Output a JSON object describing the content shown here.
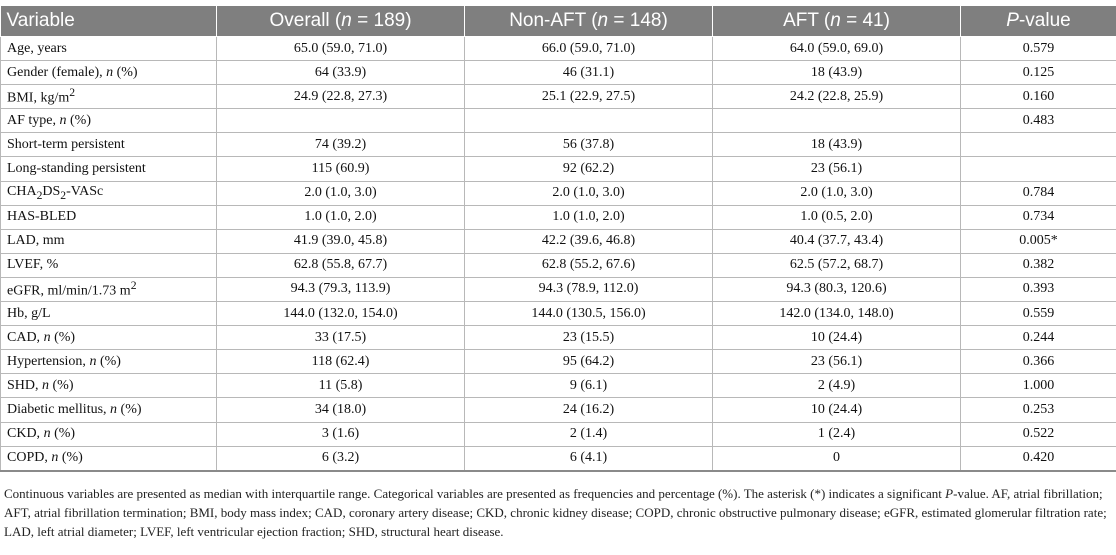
{
  "table": {
    "headers": {
      "variable": "Variable",
      "overall": {
        "pre": "Overall (",
        "n": "n",
        "post": " = 189)"
      },
      "non_aft": {
        "pre": "Non-AFT (",
        "n": "n",
        "post": " = 148)"
      },
      "aft": {
        "pre": "AFT (",
        "n": "n",
        "post": " = 41)"
      },
      "p": {
        "pre": "",
        "n": "P",
        "post": "-value"
      }
    },
    "rows": [
      {
        "label": "Age, years",
        "overall": "65.0 (59.0, 71.0)",
        "non_aft": "66.0 (59.0, 71.0)",
        "aft": "64.0 (59.0, 69.0)",
        "p": "0.579"
      },
      {
        "label": "Gender (female), ",
        "label_it": "n",
        "label_post": " (%)",
        "overall": "64 (33.9)",
        "non_aft": "46 (31.1)",
        "aft": "18 (43.9)",
        "p": "0.125"
      },
      {
        "label": "BMI, kg/m",
        "label_sup": "2",
        "overall": "24.9 (22.8, 27.3)",
        "non_aft": "25.1 (22.9, 27.5)",
        "aft": "24.2 (22.8, 25.9)",
        "p": "0.160"
      },
      {
        "label": "AF type, ",
        "label_it": "n",
        "label_post": " (%)",
        "overall": "",
        "non_aft": "",
        "aft": "",
        "p": "0.483"
      },
      {
        "label": "Short-term persistent",
        "overall": "74 (39.2)",
        "non_aft": "56 (37.8)",
        "aft": "18 (43.9)",
        "p": ""
      },
      {
        "label": "Long-standing persistent",
        "overall": "115 (60.9)",
        "non_aft": "92 (62.2)",
        "aft": "23 (56.1)",
        "p": ""
      },
      {
        "label": "CHA",
        "label_sub1": "2",
        "label_mid": "DS",
        "label_sub2": "2",
        "label_post": "-VASc",
        "overall": "2.0 (1.0, 3.0)",
        "non_aft": "2.0 (1.0, 3.0)",
        "aft": "2.0 (1.0, 3.0)",
        "p": "0.784"
      },
      {
        "label": "HAS-BLED",
        "overall": "1.0 (1.0, 2.0)",
        "non_aft": "1.0 (1.0, 2.0)",
        "aft": "1.0 (0.5, 2.0)",
        "p": "0.734"
      },
      {
        "label": "LAD, mm",
        "overall": "41.9 (39.0, 45.8)",
        "non_aft": "42.2 (39.6, 46.8)",
        "aft": "40.4 (37.7, 43.4)",
        "p": "0.005*"
      },
      {
        "label": "LVEF, %",
        "overall": "62.8 (55.8, 67.7)",
        "non_aft": "62.8 (55.2, 67.6)",
        "aft": "62.5 (57.2, 68.7)",
        "p": "0.382"
      },
      {
        "label": "eGFR, ml/min/1.73 m",
        "label_sup": "2",
        "overall": "94.3 (79.3, 113.9)",
        "non_aft": "94.3 (78.9, 112.0)",
        "aft": "94.3 (80.3, 120.6)",
        "p": "0.393"
      },
      {
        "label": "Hb, g/L",
        "overall": "144.0 (132.0, 154.0)",
        "non_aft": "144.0 (130.5, 156.0)",
        "aft": "142.0 (134.0, 148.0)",
        "p": "0.559"
      },
      {
        "label": "CAD, ",
        "label_it": "n",
        "label_post": " (%)",
        "overall": "33 (17.5)",
        "non_aft": "23 (15.5)",
        "aft": "10 (24.4)",
        "p": "0.244"
      },
      {
        "label": "Hypertension, ",
        "label_it": "n",
        "label_post": " (%)",
        "overall": "118 (62.4)",
        "non_aft": "95 (64.2)",
        "aft": "23 (56.1)",
        "p": "0.366"
      },
      {
        "label": "SHD, ",
        "label_it": "n",
        "label_post": " (%)",
        "overall": "11 (5.8)",
        "non_aft": "9 (6.1)",
        "aft": "2 (4.9)",
        "p": "1.000"
      },
      {
        "label": "Diabetic mellitus, ",
        "label_it": "n",
        "label_post": " (%)",
        "overall": "34 (18.0)",
        "non_aft": "24 (16.2)",
        "aft": "10 (24.4)",
        "p": "0.253"
      },
      {
        "label": "CKD, ",
        "label_it": "n",
        "label_post": " (%)",
        "overall": "3 (1.6)",
        "non_aft": "2 (1.4)",
        "aft": "1 (2.4)",
        "p": "0.522"
      },
      {
        "label": "COPD, ",
        "label_it": "n",
        "label_post": " (%)",
        "overall": "6 (3.2)",
        "non_aft": "6 (4.1)",
        "aft": "0",
        "p": "0.420"
      }
    ]
  },
  "footnote": {
    "part1": "Continuous variables are presented as median with interquartile range. Categorical variables are presented as frequencies and percentage (%). The asterisk (*) indicates a significant ",
    "p_italic": "P",
    "part2": "-value. AF, atrial fibrillation; AFT, atrial fibrillation termination; BMI, body mass index; CAD, coronary artery disease; CKD, chronic kidney disease; COPD, chronic obstructive pulmonary disease; eGFR, estimated glomerular filtration rate; LAD, left atrial diameter; LVEF, left ventricular ejection fraction; SHD, structural heart disease."
  }
}
